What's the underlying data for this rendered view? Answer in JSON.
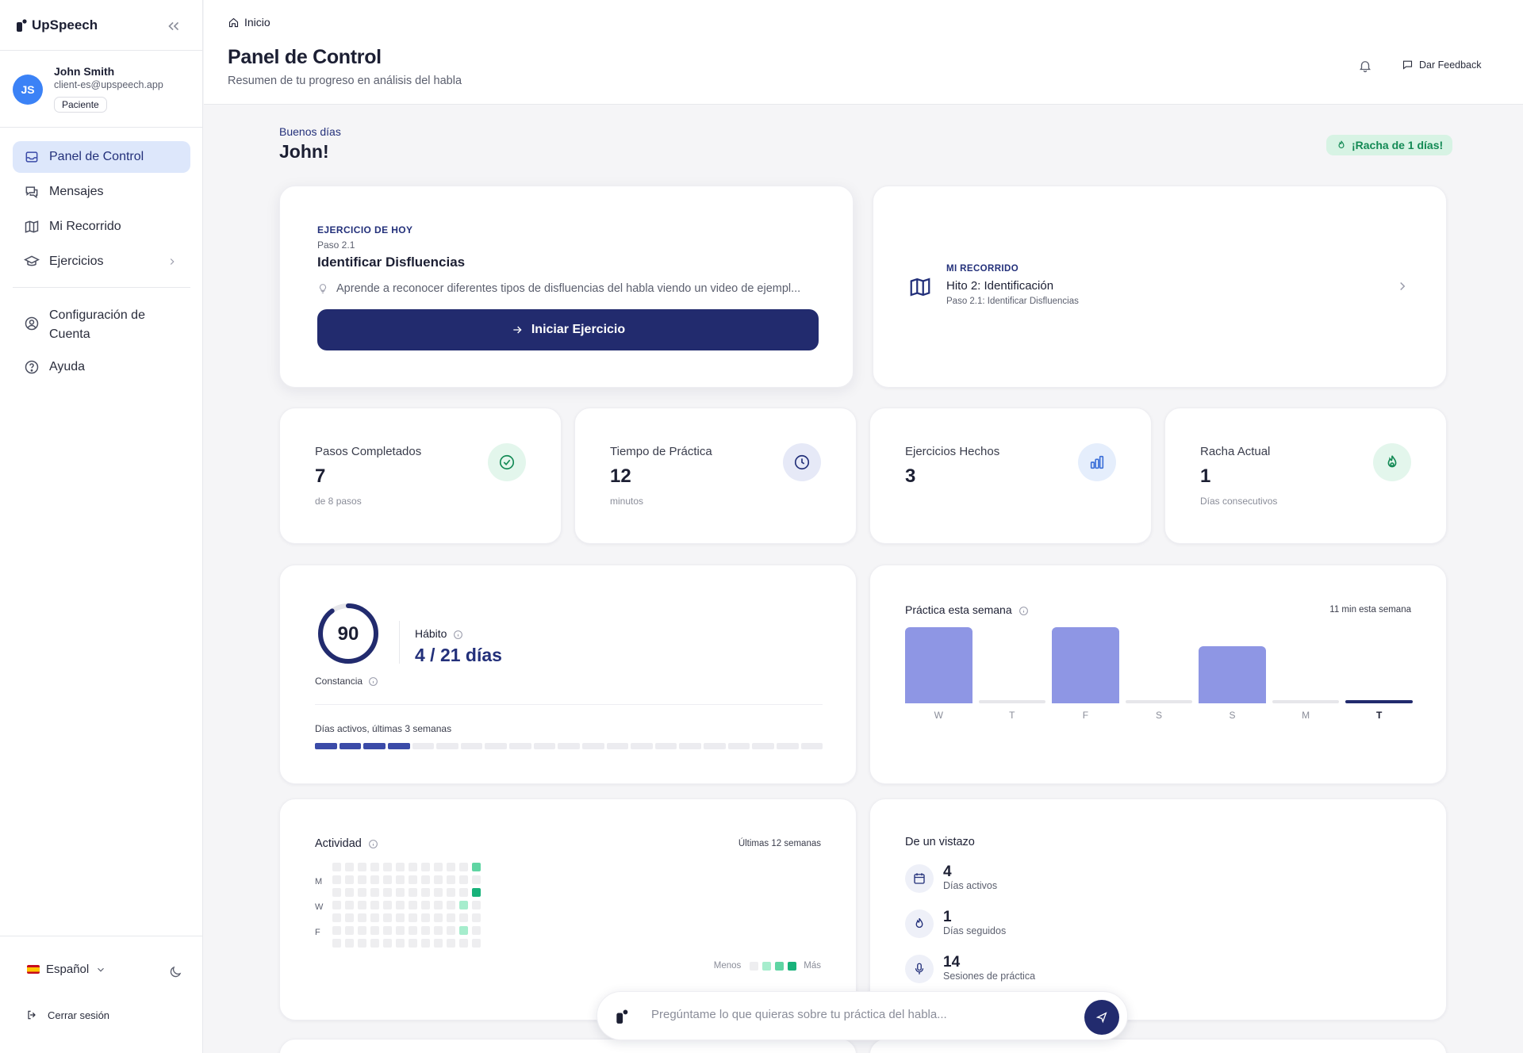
{
  "app": {
    "name": "UpSpeech"
  },
  "user": {
    "initials": "JS",
    "name": "John Smith",
    "email": "client-es@upspeech.app",
    "role": "Paciente"
  },
  "sidebar": {
    "items": [
      {
        "label": "Panel de Control"
      },
      {
        "label": "Mensajes"
      },
      {
        "label": "Mi Recorrido"
      },
      {
        "label": "Ejercicios"
      }
    ],
    "settings_line1": "Configuración de",
    "settings_line2": "Cuenta",
    "help": "Ayuda",
    "language": "Español",
    "logout": "Cerrar sesión"
  },
  "header": {
    "breadcrumb": "Inicio",
    "title": "Panel de Control",
    "subtitle": "Resumen de tu progreso en análisis del habla",
    "feedback": "Dar Feedback"
  },
  "greeting": {
    "hello": "Buenos días",
    "name": "John!",
    "streak_badge": "¡Racha de 1 días!"
  },
  "today": {
    "eyebrow": "EJERCICIO DE HOY",
    "step": "Paso 2.1",
    "title": "Identificar Disfluencias",
    "description": "Aprende a reconocer diferentes tipos de disfluencias del habla viendo un video de ejempl...",
    "button": "Iniciar Ejercicio"
  },
  "journey": {
    "eyebrow": "MI RECORRIDO",
    "title": "Hito 2: Identificación",
    "subtitle": "Paso 2.1: Identificar Disfluencias"
  },
  "stats": [
    {
      "label": "Pasos Completados",
      "value": "7",
      "sub": "de 8 pasos",
      "icon": "check-circle-icon"
    },
    {
      "label": "Tiempo de Práctica",
      "value": "12",
      "sub": "minutos",
      "icon": "clock-icon"
    },
    {
      "label": "Ejercicios Hechos",
      "value": "3",
      "sub": "",
      "icon": "bar-chart-icon"
    },
    {
      "label": "Racha Actual",
      "value": "1",
      "sub": "Días consecutivos",
      "icon": "flame-icon"
    }
  ],
  "consistency": {
    "score": "90",
    "score_fraction": 0.9,
    "label": "Constancia",
    "habit_label": "Hábito",
    "habit_value": "4 / 21 días",
    "active_label": "Días activos, últimas 3 semanas",
    "active_days": 4,
    "total_days": 21
  },
  "weekly": {
    "title": "Práctica esta semana",
    "summary": "11 min esta semana"
  },
  "chart_data": {
    "type": "bar",
    "categories": [
      "W",
      "T",
      "F",
      "S",
      "S",
      "M",
      "T"
    ],
    "values": [
      4,
      0,
      4,
      0,
      3,
      0,
      0
    ],
    "ylim": [
      0,
      4
    ],
    "highlight_index": 6,
    "colors": {
      "bar": "#8e96e4",
      "empty": "#e6e6ea",
      "today": "#222b6e"
    }
  },
  "activity": {
    "title": "Actividad",
    "range": "Últimas 12 semanas",
    "day_labels": [
      "M",
      "W",
      "F"
    ],
    "less": "Menos",
    "more": "Más",
    "active_cells": [
      {
        "week": 11,
        "day": 0,
        "level": 2
      },
      {
        "week": 11,
        "day": 2,
        "level": 3
      },
      {
        "week": 10,
        "day": 3,
        "level": 1
      },
      {
        "week": 10,
        "day": 5,
        "level": 1
      }
    ],
    "colors": [
      "#eeeef0",
      "#a6edcd",
      "#5fd5a3",
      "#18b27a"
    ]
  },
  "glance": {
    "title": "De un vistazo",
    "items": [
      {
        "value": "4",
        "label": "Días activos",
        "icon": "calendar-icon"
      },
      {
        "value": "1",
        "label": "Días seguidos",
        "icon": "flame-icon"
      },
      {
        "value": "14",
        "label": "Sesiones de práctica",
        "icon": "microphone-icon"
      }
    ]
  },
  "chat": {
    "placeholder": "Pregúntame lo que quieras sobre tu práctica del habla..."
  },
  "colors": {
    "primary": "#222b6e",
    "accent": "#3b82f6",
    "success": "#138a55"
  }
}
